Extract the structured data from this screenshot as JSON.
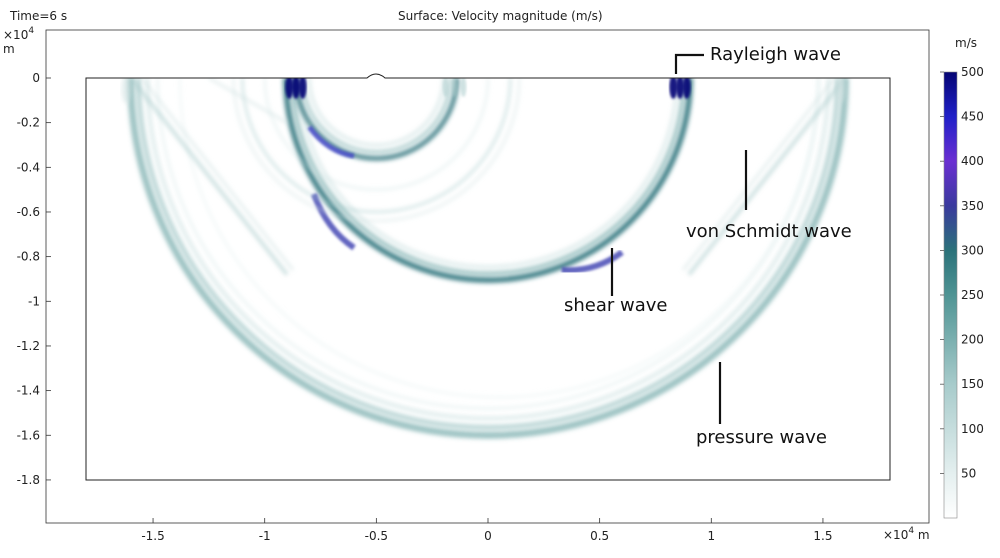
{
  "header": {
    "time_label": "Time=6 s",
    "plot_title": "Surface: Velocity magnitude (m/s)"
  },
  "axes": {
    "scale_prefix": "×10",
    "scale_exp": "4",
    "y_unit": "m",
    "x_unit": "m"
  },
  "colorbar": {
    "unit": "m/s",
    "ticks": [
      "500",
      "450",
      "400",
      "350",
      "300",
      "250",
      "200",
      "150",
      "100",
      "50"
    ],
    "range": [
      0,
      500
    ],
    "colors": [
      "#ffffff",
      "#cfe2e2",
      "#9fc4c4",
      "#5c9c9c",
      "#2a7b7e",
      "#26647c",
      "#3b3da8",
      "#6a2fd0",
      "#1a1ac0",
      "#050573"
    ]
  },
  "annotations": {
    "rayleigh": "Rayleigh wave",
    "von_schmidt": "von Schmidt wave",
    "shear": "shear wave",
    "pressure": "pressure wave"
  },
  "chart_data": {
    "type": "heatmap",
    "title": "Surface: Velocity magnitude (m/s)",
    "time": "Time=6 s",
    "xlabel": "m",
    "ylabel": "m",
    "x_scale": "×10^4",
    "y_scale": "×10^4",
    "xlim": [
      -2.0,
      2.0
    ],
    "ylim": [
      -2.0,
      0.25
    ],
    "domain_x": [
      -1.8,
      1.8
    ],
    "domain_y": [
      -1.8,
      0
    ],
    "x_ticks": [
      "-1.5",
      "-1",
      "-0.5",
      "0",
      "0.5",
      "1",
      "1.5"
    ],
    "x_tick_values": [
      -1.5,
      -1,
      -0.5,
      0,
      0.5,
      1,
      1.5
    ],
    "y_ticks": [
      "0",
      "-0.2",
      "-0.4",
      "-0.6",
      "-0.8",
      "-1",
      "-1.2",
      "-1.4",
      "-1.6",
      "-1.8"
    ],
    "y_tick_values": [
      0,
      -0.2,
      -0.4,
      -0.6,
      -0.8,
      -1,
      -1.2,
      -1.4,
      -1.6,
      -1.8
    ],
    "colorbar_range": [
      0,
      500
    ],
    "colorbar_unit": "m/s",
    "wavefronts": [
      {
        "kind": "pressure",
        "center_x": 0.0,
        "radius": 1.6,
        "peak": 200
      },
      {
        "kind": "shear",
        "center_x": 0.0,
        "radius": 0.91,
        "peak": 320
      },
      {
        "kind": "rayleigh",
        "surface_x": [
          -0.86,
          0.86
        ],
        "peak": 500
      },
      {
        "kind": "von_schmidt",
        "from_x": 1.6,
        "to_x": 0.9,
        "peak": 100
      },
      {
        "kind": "reflection",
        "center_x": -0.5,
        "radius": 0.36,
        "peak": 380
      },
      {
        "kind": "reflection",
        "center_x": -0.5,
        "radius": 0.6,
        "peak": 120
      }
    ]
  }
}
